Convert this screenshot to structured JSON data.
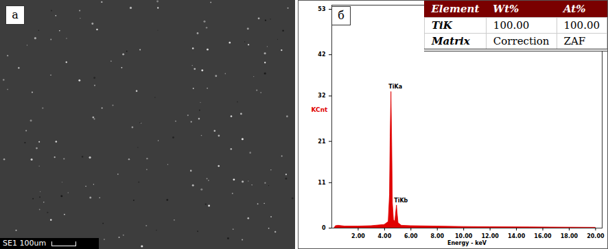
{
  "chart_data": {
    "type": "area",
    "x_label": "Energy - keV",
    "y_label": "KCnt",
    "x": [
      0.2,
      0.3,
      0.5,
      1.0,
      2.0,
      3.0,
      4.0,
      4.3,
      4.4,
      4.45,
      4.51,
      4.57,
      4.62,
      4.7,
      4.8,
      4.88,
      4.93,
      4.98,
      5.05,
      5.3,
      6.0,
      8.0,
      10.0,
      12.0,
      15.0,
      20.0
    ],
    "values": [
      0,
      0.5,
      0.6,
      0.4,
      0.4,
      0.5,
      0.8,
      1.5,
      8,
      22,
      33,
      20,
      6,
      2,
      1.5,
      4,
      5.5,
      3.5,
      1.2,
      0.6,
      0.5,
      0.4,
      0.3,
      0.25,
      0.2,
      0.1
    ],
    "color": "#e00000",
    "xlim": [
      0,
      20.5
    ],
    "xticks": [
      {
        "value": 2,
        "label": "2.00"
      },
      {
        "value": 4,
        "label": "4.00"
      },
      {
        "value": 6,
        "label": "6.00"
      },
      {
        "value": 8,
        "label": "8.00"
      },
      {
        "value": 10,
        "label": "10.00"
      },
      {
        "value": 12,
        "label": "12.00"
      },
      {
        "value": 14,
        "label": "14.00"
      },
      {
        "value": 16,
        "label": "16.00"
      },
      {
        "value": 18,
        "label": "18.00"
      },
      {
        "value": 20,
        "label": "20.00"
      }
    ],
    "ylim": [
      0,
      54
    ],
    "yticks": [
      0,
      11,
      21,
      32,
      42,
      53
    ],
    "annotations": [
      {
        "text": "TiKa",
        "x": 4.51,
        "y": 33
      },
      {
        "text": "TiKb",
        "x": 4.93,
        "y": 5.5
      }
    ]
  },
  "panels": {
    "a": "а",
    "b": "б"
  },
  "micrograph": {
    "caption": "SE1",
    "scale_bar": "100um"
  },
  "table": {
    "header": [
      "Element",
      "Wt%",
      "At%"
    ],
    "rows": [
      [
        "TiK",
        "100.00",
        "100.00"
      ],
      [
        "Matrix",
        "Correction",
        "ZAF"
      ]
    ]
  }
}
